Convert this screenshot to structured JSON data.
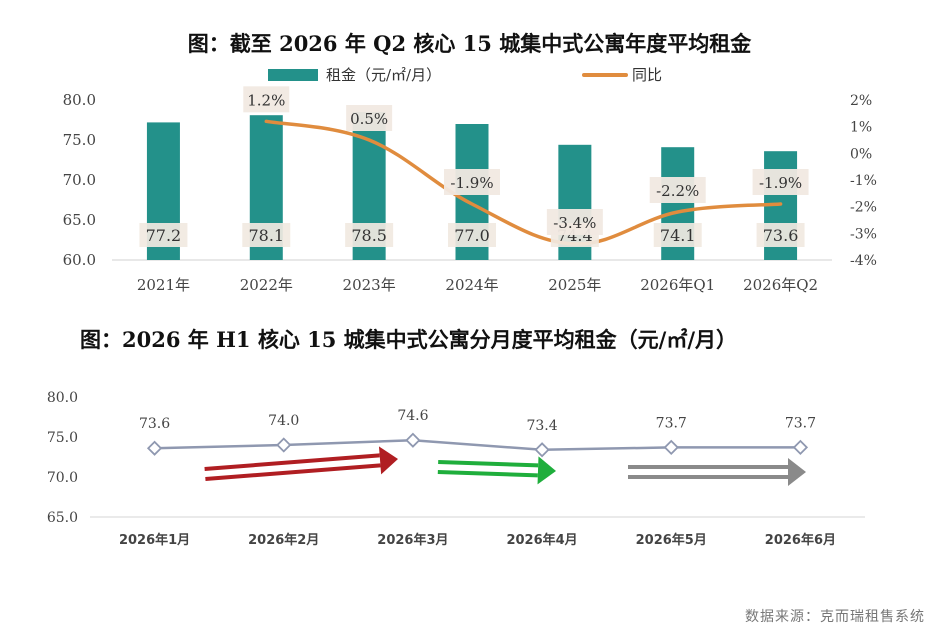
{
  "chart_data": [
    {
      "type": "bar",
      "title": "图：截至 2026 年 Q2 核心 15 城集中式公寓年度平均租金",
      "categories": [
        "2021年",
        "2022年",
        "2023年",
        "2024年",
        "2025年",
        "2026年Q1",
        "2026年Q2"
      ],
      "series": [
        {
          "name": "租金（元/㎡/月）",
          "type": "bar",
          "axis": "left",
          "values": [
            77.2,
            78.1,
            78.5,
            77.0,
            74.4,
            74.1,
            73.6
          ],
          "labels": [
            "77.2",
            "78.1",
            "78.5",
            "77.0",
            "74.4",
            "74.1",
            "73.6"
          ]
        },
        {
          "name": "同比",
          "type": "line",
          "axis": "right",
          "values": [
            null,
            1.2,
            0.5,
            -1.9,
            -3.4,
            -2.2,
            -1.9
          ],
          "labels": [
            "",
            "1.2%",
            "0.5%",
            "-1.9%",
            "-3.4%",
            "-2.2%",
            "-1.9%"
          ]
        }
      ],
      "ylim": [
        60,
        80
      ],
      "yticks": [
        "80.0",
        "75.0",
        "70.0",
        "65.0",
        "60.0"
      ],
      "y2lim": [
        -4,
        2
      ],
      "y2ticks": [
        "2%",
        "1%",
        "0%",
        "-1%",
        "-2%",
        "-3%",
        "-4%"
      ],
      "colors": {
        "bar": "#23918a",
        "line": "#e08c3e",
        "label_bg": "#f1e9e1"
      },
      "legend": "top"
    },
    {
      "type": "line",
      "title": "图：2026 年 H1 核心 15 城集中式公寓分月度平均租金（元/㎡/月）",
      "categories": [
        "2026年1月",
        "2026年2月",
        "2026年3月",
        "2026年4月",
        "2026年5月",
        "2026年6月"
      ],
      "series": [
        {
          "values": [
            73.6,
            74.0,
            74.6,
            73.4,
            73.7,
            73.7
          ],
          "labels": [
            "73.6",
            "74.0",
            "74.6",
            "73.4",
            "73.7",
            "73.7"
          ]
        }
      ],
      "ylim": [
        65,
        80
      ],
      "yticks": [
        "80.0",
        "75.0",
        "70.0",
        "65.0"
      ],
      "colors": {
        "line": "#8f98b0",
        "arrow_red": "#b01e22",
        "arrow_green": "#1fae3c",
        "arrow_gray": "#8a8a8a"
      }
    }
  ],
  "source": "数据来源：克而瑞租售系统"
}
